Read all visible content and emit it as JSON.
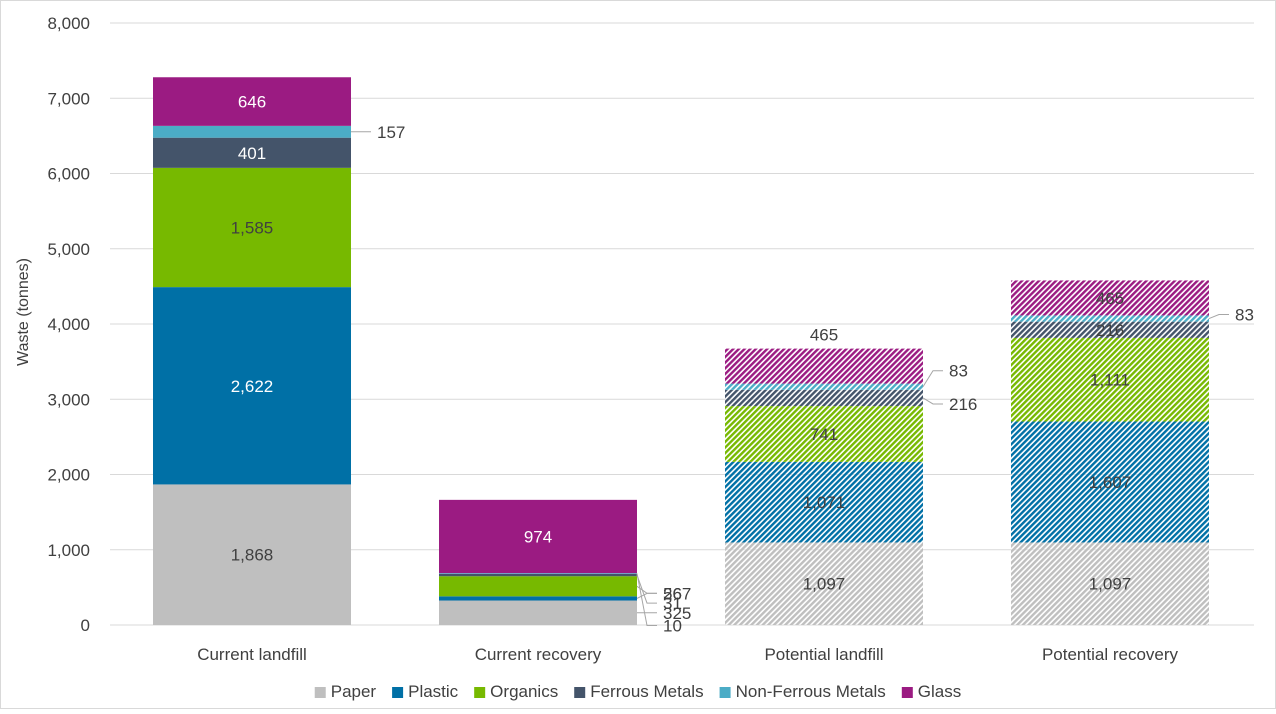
{
  "chart_data": {
    "type": "bar",
    "stacked": true,
    "categories": [
      "Current landfill",
      "Current recovery",
      "Potential landfill",
      "Potential recovery"
    ],
    "hatched_categories": [
      "Potential landfill",
      "Potential recovery"
    ],
    "ylabel": "Waste (tonnes)",
    "ylim": [
      0,
      8000
    ],
    "yticks": [
      0,
      1000,
      2000,
      3000,
      4000,
      5000,
      6000,
      7000,
      8000
    ],
    "ytick_labels": [
      "0",
      "1,000",
      "2,000",
      "3,000",
      "4,000",
      "5,000",
      "6,000",
      "7,000",
      "8,000"
    ],
    "grid": true,
    "legend": "bottom",
    "series": [
      {
        "name": "Paper",
        "color": "#bfbfbf",
        "values": [
          1868,
          325,
          1097,
          1097
        ],
        "labels": [
          "1,868",
          "325",
          "1,097",
          "1,097"
        ]
      },
      {
        "name": "Plastic",
        "color": "#0070a6",
        "values": [
          2622,
          56,
          1071,
          1607
        ],
        "labels": [
          "2,622",
          "56",
          "1,071",
          "1,607"
        ]
      },
      {
        "name": "Organics",
        "color": "#77b900",
        "values": [
          1585,
          267,
          741,
          1111
        ],
        "labels": [
          "1,585",
          "267",
          "741",
          "1,111"
        ]
      },
      {
        "name": "Ferrous Metals",
        "color": "#44546a",
        "values": [
          401,
          31,
          216,
          216
        ],
        "labels": [
          "401",
          "31",
          "216",
          "216"
        ]
      },
      {
        "name": "Non-Ferrous Metals",
        "color": "#4bacc6",
        "values": [
          157,
          10,
          83,
          83
        ],
        "labels": [
          "157",
          "10",
          "83",
          "83"
        ]
      },
      {
        "name": "Glass",
        "color": "#9b1b82",
        "values": [
          646,
          974,
          465,
          465
        ],
        "labels": [
          "646",
          "974",
          "465",
          "465"
        ]
      }
    ]
  }
}
